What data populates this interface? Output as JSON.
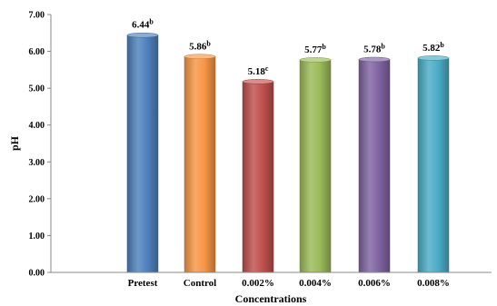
{
  "chart_data": {
    "type": "bar",
    "xlabel": "Concentrations",
    "ylabel": "pH",
    "ylim": [
      0,
      7
    ],
    "yticks": [
      "0.00",
      "1.00",
      "2.00",
      "3.00",
      "4.00",
      "5.00",
      "6.00",
      "7.00"
    ],
    "grid": false,
    "categories": [
      "Pretest",
      "Control",
      "0.002%",
      "0.004%",
      "0.006%",
      "0.008%"
    ],
    "values": [
      6.44,
      5.86,
      5.18,
      5.77,
      5.78,
      5.82
    ],
    "value_labels": [
      "6.44",
      "5.86",
      "5.18",
      "5.77",
      "5.78",
      "5.82"
    ],
    "superscripts": [
      "b",
      "b",
      "c",
      "b",
      "b",
      "b"
    ],
    "colors": [
      "#4F81BD",
      "#F79646",
      "#C0504D",
      "#9BBB59",
      "#8064A2",
      "#4BACC6"
    ]
  }
}
